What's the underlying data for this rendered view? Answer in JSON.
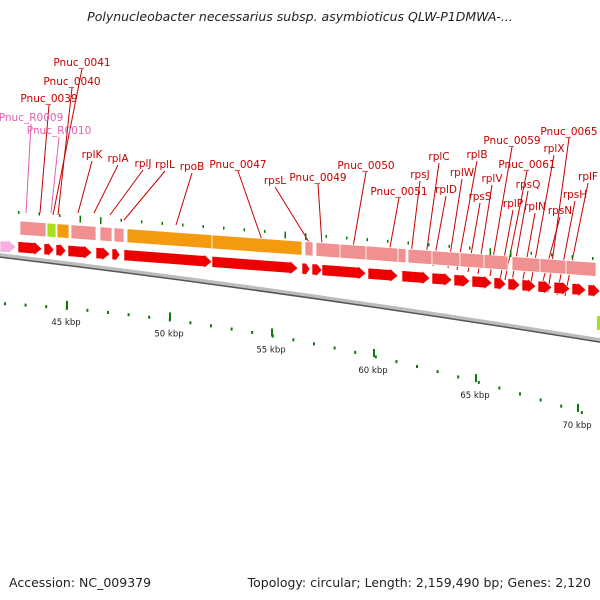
{
  "title": "Polynucleobacter necessarius subsp. asymbioticus QLW-P1DMWA-...",
  "footer": {
    "accession": "Accession: NC_009379",
    "summary": "Topology: circular; Length: 2,159,490 bp; Genes: 2,120"
  },
  "colors": {
    "gene_label": "#c80000",
    "rna_label": "#e060b0",
    "cds_feature": "#f09090",
    "rrna_feature": "#f39a10",
    "trna_feature": "#a8e020",
    "strand_arrow": "#ee0000",
    "axis_tick": "#0a7a0a"
  },
  "axis": {
    "ticks": [
      {
        "kbp": 45,
        "text": "45 kbp"
      },
      {
        "kbp": 50,
        "text": "50 kbp"
      },
      {
        "kbp": 55,
        "text": "55 kbp"
      },
      {
        "kbp": 60,
        "text": "60 kbp"
      },
      {
        "kbp": 65,
        "text": "65 kbp"
      },
      {
        "kbp": 70,
        "text": "70 kbp"
      }
    ]
  },
  "gene_labels": [
    {
      "text": "Pnuc_0041",
      "type": "gene"
    },
    {
      "text": "Pnuc_0040",
      "type": "gene"
    },
    {
      "text": "Pnuc_0039",
      "type": "gene"
    },
    {
      "text": "Pnuc_R0009",
      "type": "rna"
    },
    {
      "text": "Pnuc_R0010",
      "type": "rna"
    },
    {
      "text": "rplK",
      "type": "gene"
    },
    {
      "text": "rplA",
      "type": "gene"
    },
    {
      "text": "rplJ",
      "type": "gene"
    },
    {
      "text": "rplL",
      "type": "gene"
    },
    {
      "text": "rpoB",
      "type": "gene"
    },
    {
      "text": "Pnuc_0047",
      "type": "gene"
    },
    {
      "text": "rpsL",
      "type": "gene"
    },
    {
      "text": "Pnuc_0049",
      "type": "gene"
    },
    {
      "text": "Pnuc_0050",
      "type": "gene"
    },
    {
      "text": "Pnuc_0051",
      "type": "gene"
    },
    {
      "text": "rpsJ",
      "type": "gene"
    },
    {
      "text": "rplC",
      "type": "gene"
    },
    {
      "text": "rplD",
      "type": "gene"
    },
    {
      "text": "rplB",
      "type": "gene"
    },
    {
      "text": "rplW",
      "type": "gene"
    },
    {
      "text": "rpsS",
      "type": "gene"
    },
    {
      "text": "rplV",
      "type": "gene"
    },
    {
      "text": "Pnuc_0059",
      "type": "gene"
    },
    {
      "text": "rplP",
      "type": "gene"
    },
    {
      "text": "rpsQ",
      "type": "gene"
    },
    {
      "text": "Pnuc_0061",
      "type": "gene"
    },
    {
      "text": "rplN",
      "type": "gene"
    },
    {
      "text": "rplX",
      "type": "gene"
    },
    {
      "text": "Pnuc_0065",
      "type": "gene"
    },
    {
      "text": "rpsN",
      "type": "gene"
    },
    {
      "text": "rpsH",
      "type": "gene"
    },
    {
      "text": "rplF",
      "type": "gene"
    }
  ]
}
